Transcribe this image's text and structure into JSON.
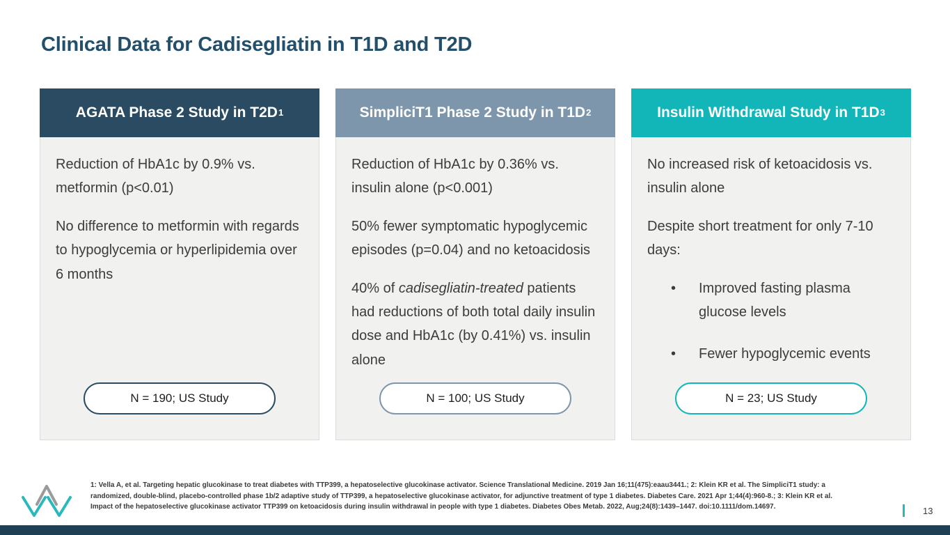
{
  "slide": {
    "title": "Clinical Data for Cadisegliatin in T1D and T2D",
    "page_number": "13"
  },
  "colors": {
    "title_text": "#234F6B",
    "navy": "#2A4B61",
    "steel_blue": "#7E96AB",
    "teal": "#12B5B8",
    "bottom_bar": "#1F3F55",
    "accent_teal": "#29B9BD",
    "card_body_bg": "#F1F1EF",
    "body_text": "#3C3C3C"
  },
  "cards": [
    {
      "header": "AGATA Phase 2 Study in T2D",
      "superscript": "1",
      "header_color": "#2A4B61",
      "accent_color": "#2A4B61",
      "content": [
        {
          "type": "p",
          "segments": [
            {
              "t": "Reduction of HbA1c by 0.9% vs. metformin (p<0.01)"
            }
          ]
        },
        {
          "type": "p",
          "segments": [
            {
              "t": "No difference to metformin with regards to hypoglycemia or hyperlipidemia over 6 months"
            }
          ]
        }
      ],
      "pill": "N = 190; US Study"
    },
    {
      "header": "SimpliciT1 Phase 2 Study in T1D",
      "superscript": "2",
      "header_color": "#7E96AB",
      "accent_color": "#7E96AB",
      "content": [
        {
          "type": "p",
          "segments": [
            {
              "t": "Reduction of HbA1c by 0.36% vs. insulin alone (p<0.001)"
            }
          ]
        },
        {
          "type": "p",
          "segments": [
            {
              "t": "50% fewer symptomatic hypoglycemic episodes (p=0.04) and no ketoacidosis"
            }
          ]
        },
        {
          "type": "p",
          "segments": [
            {
              "t": "40% of "
            },
            {
              "t": "cadisegliatin-treated",
              "i": true
            },
            {
              "t": " patients had reductions of both total daily insulin dose and HbA1c (by 0.41%) vs. insulin alone"
            }
          ]
        }
      ],
      "pill": "N = 100; US Study"
    },
    {
      "header": "Insulin Withdrawal Study in T1D",
      "superscript": "3",
      "header_color": "#12B5B8",
      "accent_color": "#12B5B8",
      "content": [
        {
          "type": "p",
          "segments": [
            {
              "t": "No increased risk of ketoacidosis vs. insulin alone"
            }
          ]
        },
        {
          "type": "p",
          "segments": [
            {
              "t": "Despite short treatment for only 7-10 days:"
            }
          ]
        },
        {
          "type": "bullet",
          "segments": [
            {
              "t": "Improved fasting plasma glucose levels"
            }
          ]
        },
        {
          "type": "bullet",
          "segments": [
            {
              "t": "Fewer hypoglycemic events"
            }
          ]
        }
      ],
      "pill": "N = 23; US Study"
    }
  ],
  "footer": {
    "bullet_glyph": "•",
    "references": [
      "1: Vella A, et al. Targeting hepatic glucokinase to treat diabetes with TTP399, a hepatoselective glucokinase activator. Science Translational Medicine. 2019 Jan 16;11(475):eaau3441.; 2: Klein KR et al. The SimpliciT1 study: a",
      "randomized, double-blind, placebo-controlled phase 1b/2 adaptive study of TTP399, a hepatoselective glucokinase activator, for adjunctive treatment of type 1 diabetes. Diabetes Care. 2021 Apr 1;44(4):960-8.; 3: Klein KR et al.",
      "Impact of the hepatoselective glucokinase activator TTP399 on ketoacidosis during insulin withdrawal in people with type 1 diabetes. Diabetes Obes Metab. 2022, Aug;24(8):1439–1447. doi:10.1111/dom.14697."
    ],
    "logo_icon": "vtv-logo-icon"
  }
}
